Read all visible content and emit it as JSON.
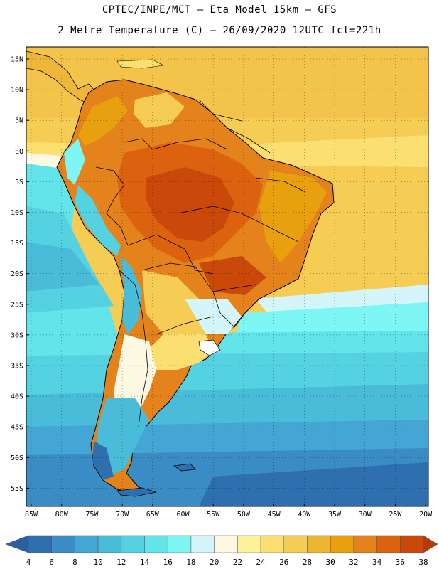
{
  "header": {
    "line1": "CPTEC/INPE/MCT –  Eta Model 15km – GFS",
    "line2": "2 Metre Temperature (C) – 26/09/2020 12UTC fct=221h"
  },
  "map": {
    "region": "South America",
    "lat_labels": [
      "15N",
      "10N",
      "5N",
      "EQ",
      "5S",
      "10S",
      "15S",
      "20S",
      "25S",
      "30S",
      "35S",
      "40S",
      "45S",
      "50S",
      "55S"
    ],
    "lon_labels": [
      "85W",
      "80W",
      "75W",
      "70W",
      "65W",
      "60W",
      "55W",
      "50W",
      "45W",
      "40W",
      "35W",
      "30W",
      "25W",
      "20W"
    ]
  },
  "colorbar": {
    "ticks": [
      "4",
      "6",
      "8",
      "10",
      "12",
      "14",
      "16",
      "18",
      "20",
      "22",
      "24",
      "26",
      "28",
      "30",
      "32",
      "34",
      "36",
      "38"
    ],
    "colors": [
      "#2e6fb0",
      "#3a8cc4",
      "#44a6d4",
      "#49bcd9",
      "#55d2e2",
      "#63e3ea",
      "#7ef6f6",
      "#d4f6fb",
      "#fdf8e2",
      "#fef39a",
      "#fbe071",
      "#f5cd55",
      "#edb630",
      "#e9a00f",
      "#e4821b",
      "#dc6210",
      "#c9480a"
    ],
    "under_color": "#2a5fa3",
    "over_color": "#b8380b"
  }
}
